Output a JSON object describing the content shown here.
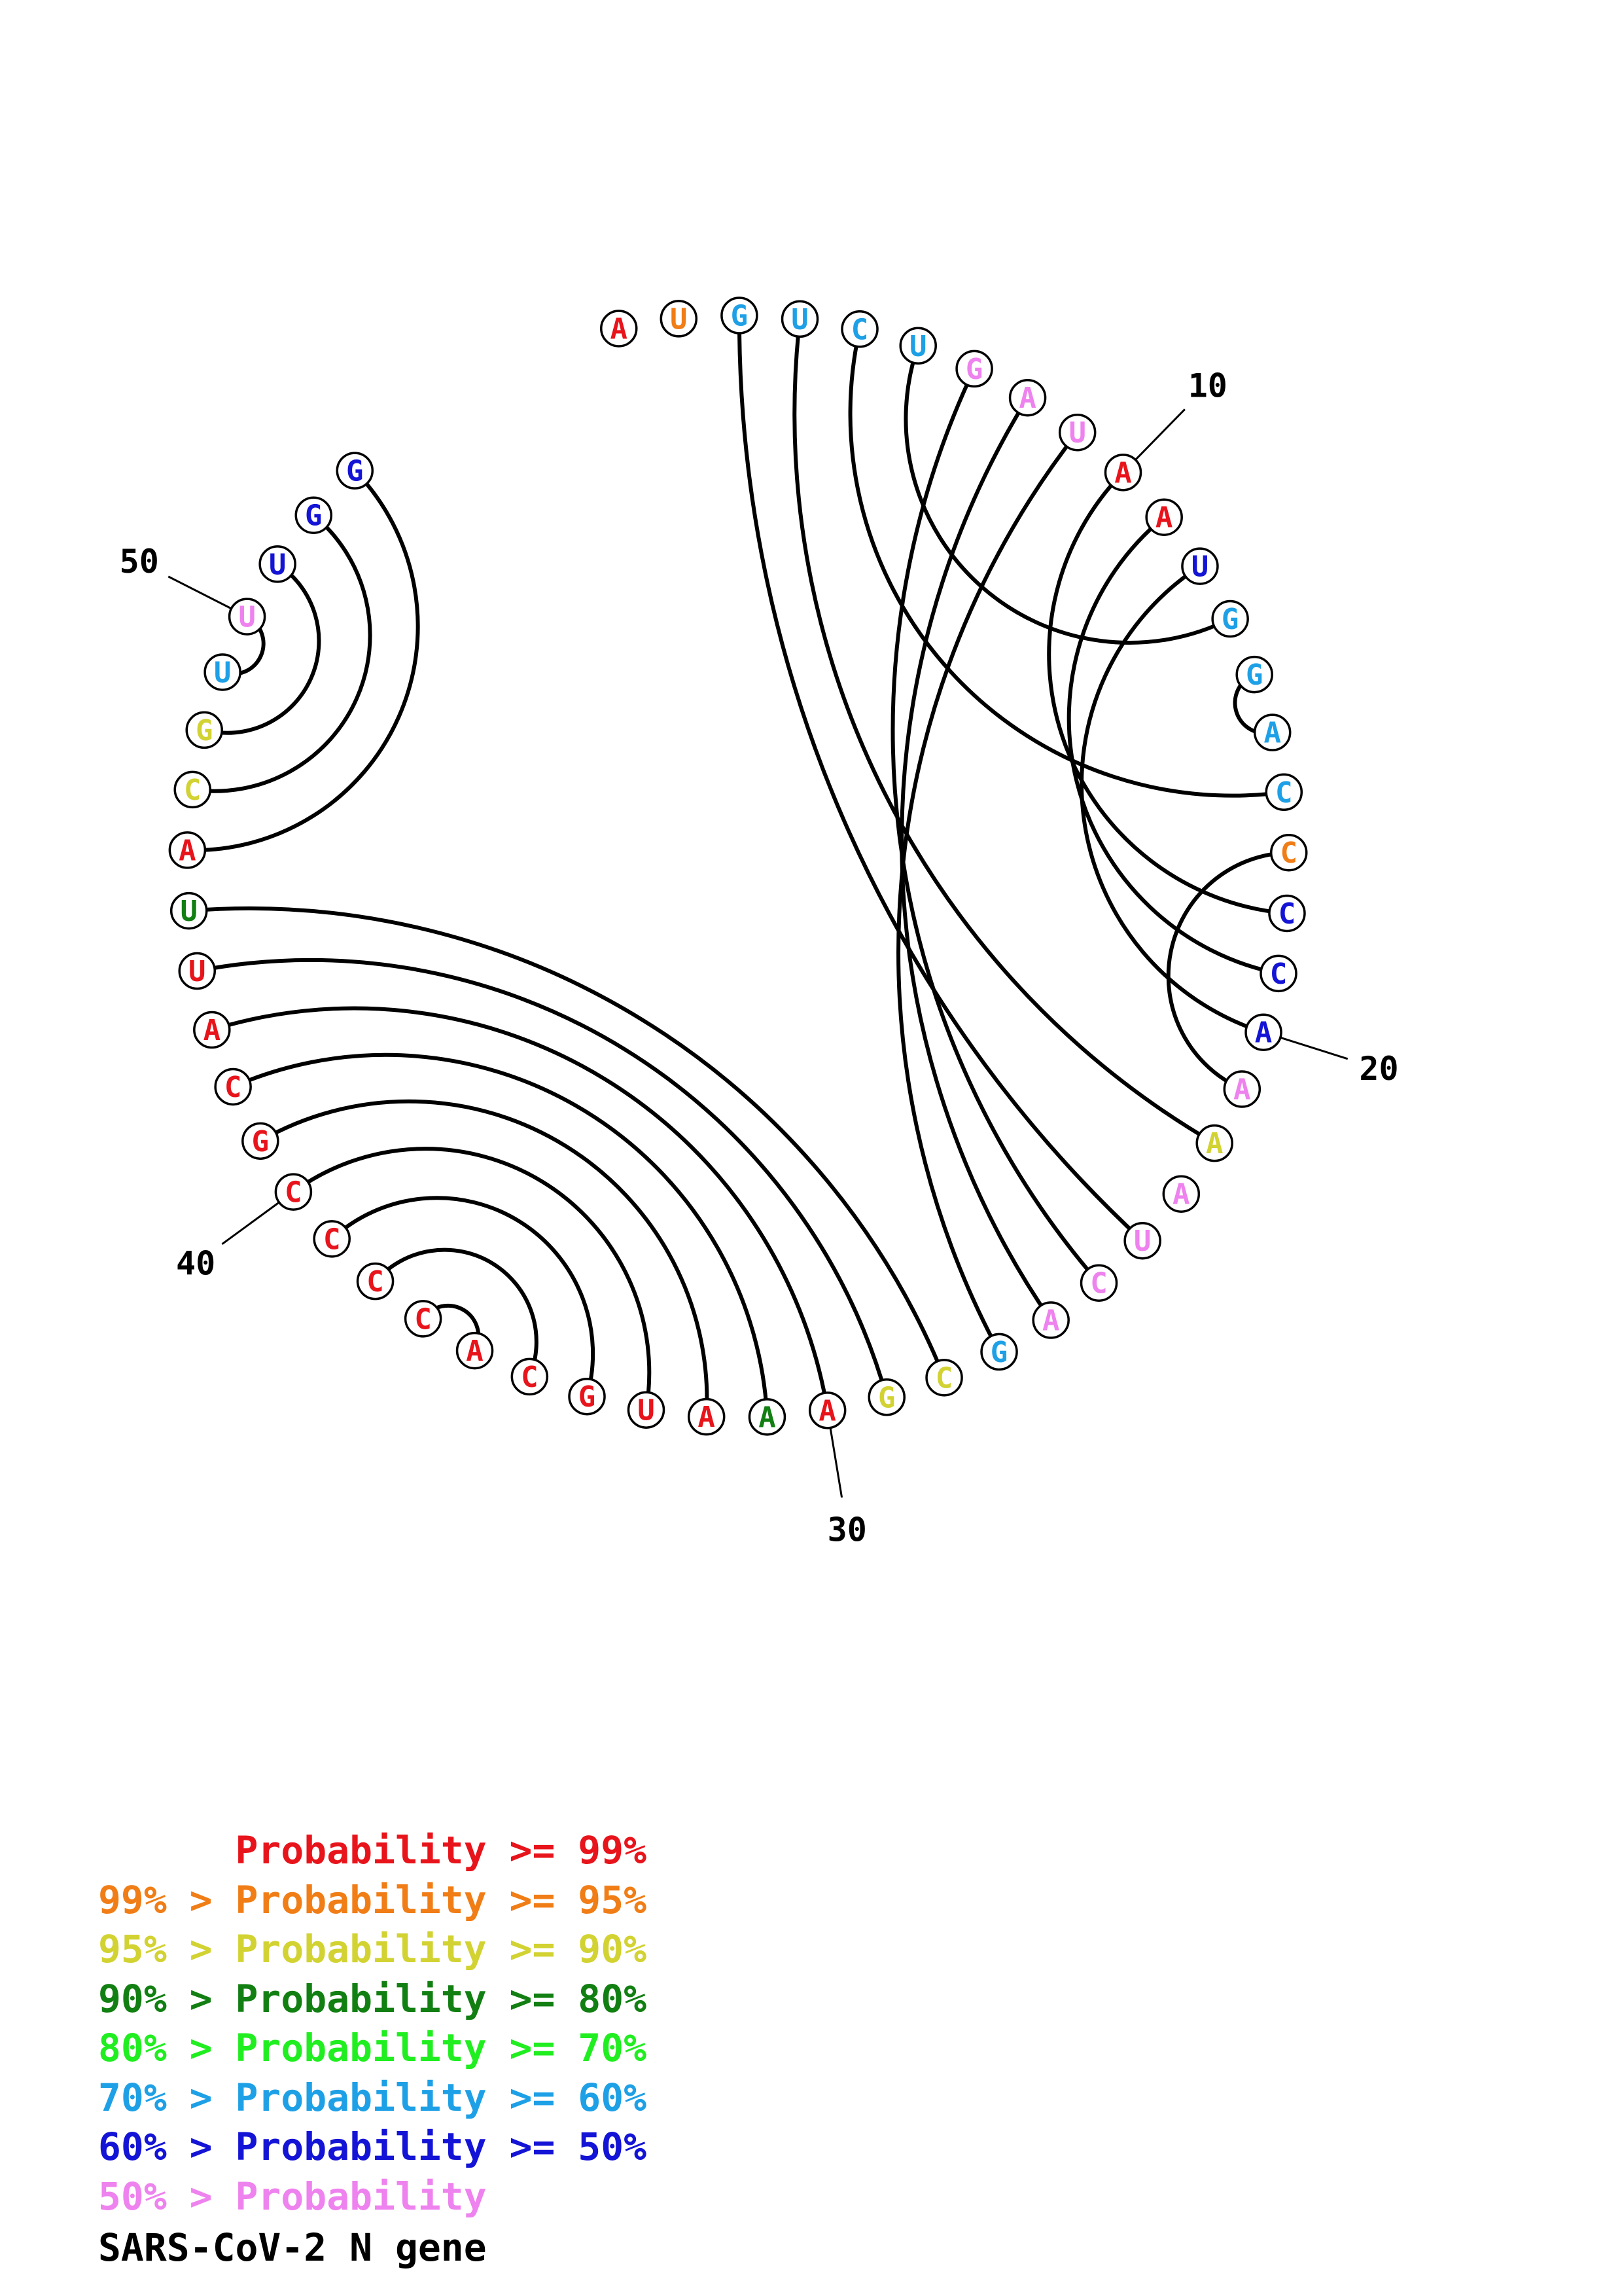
{
  "title": "SARS-CoV-2 N gene",
  "bin_colors": {
    "p99": "#e8141b",
    "p95": "#f07d16",
    "p90": "#d2d232",
    "p80": "#127f12",
    "p70": "#20ee20",
    "p60": "#1ea0e6",
    "p50": "#1414d6",
    "lt50": "#ee82ee"
  },
  "sequence": [
    {
      "pos": 1,
      "base": "A",
      "bin": "p99"
    },
    {
      "pos": 2,
      "base": "U",
      "bin": "p95"
    },
    {
      "pos": 3,
      "base": "G",
      "bin": "p60"
    },
    {
      "pos": 4,
      "base": "U",
      "bin": "p60"
    },
    {
      "pos": 5,
      "base": "C",
      "bin": "p60"
    },
    {
      "pos": 6,
      "base": "U",
      "bin": "p60"
    },
    {
      "pos": 7,
      "base": "G",
      "bin": "lt50"
    },
    {
      "pos": 8,
      "base": "A",
      "bin": "lt50"
    },
    {
      "pos": 9,
      "base": "U",
      "bin": "lt50"
    },
    {
      "pos": 10,
      "base": "A",
      "bin": "p99"
    },
    {
      "pos": 11,
      "base": "A",
      "bin": "p99"
    },
    {
      "pos": 12,
      "base": "U",
      "bin": "p50"
    },
    {
      "pos": 13,
      "base": "G",
      "bin": "p60"
    },
    {
      "pos": 14,
      "base": "G",
      "bin": "p60"
    },
    {
      "pos": 15,
      "base": "A",
      "bin": "p60"
    },
    {
      "pos": 16,
      "base": "C",
      "bin": "p60"
    },
    {
      "pos": 17,
      "base": "C",
      "bin": "p95"
    },
    {
      "pos": 18,
      "base": "C",
      "bin": "p50"
    },
    {
      "pos": 19,
      "base": "C",
      "bin": "p50"
    },
    {
      "pos": 20,
      "base": "A",
      "bin": "p50"
    },
    {
      "pos": 21,
      "base": "A",
      "bin": "lt50"
    },
    {
      "pos": 22,
      "base": "A",
      "bin": "p90"
    },
    {
      "pos": 23,
      "base": "A",
      "bin": "lt50"
    },
    {
      "pos": 24,
      "base": "U",
      "bin": "lt50"
    },
    {
      "pos": 25,
      "base": "C",
      "bin": "lt50"
    },
    {
      "pos": 26,
      "base": "A",
      "bin": "lt50"
    },
    {
      "pos": 27,
      "base": "G",
      "bin": "p60"
    },
    {
      "pos": 28,
      "base": "C",
      "bin": "p90"
    },
    {
      "pos": 29,
      "base": "G",
      "bin": "p90"
    },
    {
      "pos": 30,
      "base": "A",
      "bin": "p99"
    },
    {
      "pos": 31,
      "base": "A",
      "bin": "p80"
    },
    {
      "pos": 32,
      "base": "A",
      "bin": "p99"
    },
    {
      "pos": 33,
      "base": "U",
      "bin": "p99"
    },
    {
      "pos": 34,
      "base": "G",
      "bin": "p99"
    },
    {
      "pos": 35,
      "base": "C",
      "bin": "p99"
    },
    {
      "pos": 36,
      "base": "A",
      "bin": "p99"
    },
    {
      "pos": 37,
      "base": "C",
      "bin": "p99"
    },
    {
      "pos": 38,
      "base": "C",
      "bin": "p99"
    },
    {
      "pos": 39,
      "base": "C",
      "bin": "p99"
    },
    {
      "pos": 40,
      "base": "C",
      "bin": "p99"
    },
    {
      "pos": 41,
      "base": "G",
      "bin": "p99"
    },
    {
      "pos": 42,
      "base": "C",
      "bin": "p99"
    },
    {
      "pos": 43,
      "base": "A",
      "bin": "p99"
    },
    {
      "pos": 44,
      "base": "U",
      "bin": "p99"
    },
    {
      "pos": 45,
      "base": "U",
      "bin": "p80"
    },
    {
      "pos": 46,
      "base": "A",
      "bin": "p99"
    },
    {
      "pos": 47,
      "base": "C",
      "bin": "p90"
    },
    {
      "pos": 48,
      "base": "G",
      "bin": "p90"
    },
    {
      "pos": 49,
      "base": "U",
      "bin": "p60"
    },
    {
      "pos": 50,
      "base": "U",
      "bin": "lt50"
    },
    {
      "pos": 51,
      "base": "U",
      "bin": "p50"
    },
    {
      "pos": 52,
      "base": "G",
      "bin": "p50"
    },
    {
      "pos": 53,
      "base": "G",
      "bin": "p50"
    }
  ],
  "pairs": [
    [
      3,
      24
    ],
    [
      4,
      22
    ],
    [
      5,
      16
    ],
    [
      6,
      13
    ],
    [
      7,
      25
    ],
    [
      8,
      26
    ],
    [
      9,
      27
    ],
    [
      10,
      18
    ],
    [
      11,
      19
    ],
    [
      12,
      20
    ],
    [
      14,
      15
    ],
    [
      17,
      21
    ],
    [
      28,
      45
    ],
    [
      29,
      44
    ],
    [
      30,
      43
    ],
    [
      31,
      42
    ],
    [
      32,
      41
    ],
    [
      33,
      40
    ],
    [
      34,
      39
    ],
    [
      35,
      38
    ],
    [
      36,
      37
    ],
    [
      46,
      53
    ],
    [
      47,
      52
    ],
    [
      48,
      51
    ],
    [
      49,
      50
    ]
  ],
  "position_labels": [
    {
      "pos": 10,
      "text": "10"
    },
    {
      "pos": 20,
      "text": "20"
    },
    {
      "pos": 30,
      "text": "30"
    },
    {
      "pos": 40,
      "text": "40"
    },
    {
      "pos": 50,
      "text": "50"
    }
  ],
  "legend": [
    {
      "prefix": "",
      "label": "Probability >= 99%",
      "bin": "p99"
    },
    {
      "prefix": "99% > ",
      "label": "Probability >= 95%",
      "bin": "p95"
    },
    {
      "prefix": "95% > ",
      "label": "Probability >= 90%",
      "bin": "p90"
    },
    {
      "prefix": "90% > ",
      "label": "Probability >= 80%",
      "bin": "p80"
    },
    {
      "prefix": "80% > ",
      "label": "Probability >= 70%",
      "bin": "p70"
    },
    {
      "prefix": "70% > ",
      "label": "Probability >= 60%",
      "bin": "p60"
    },
    {
      "prefix": "60% > ",
      "label": "Probability >= 50%",
      "bin": "p50"
    },
    {
      "prefix": "50% > ",
      "label": "Probability",
      "bin": "lt50"
    }
  ]
}
